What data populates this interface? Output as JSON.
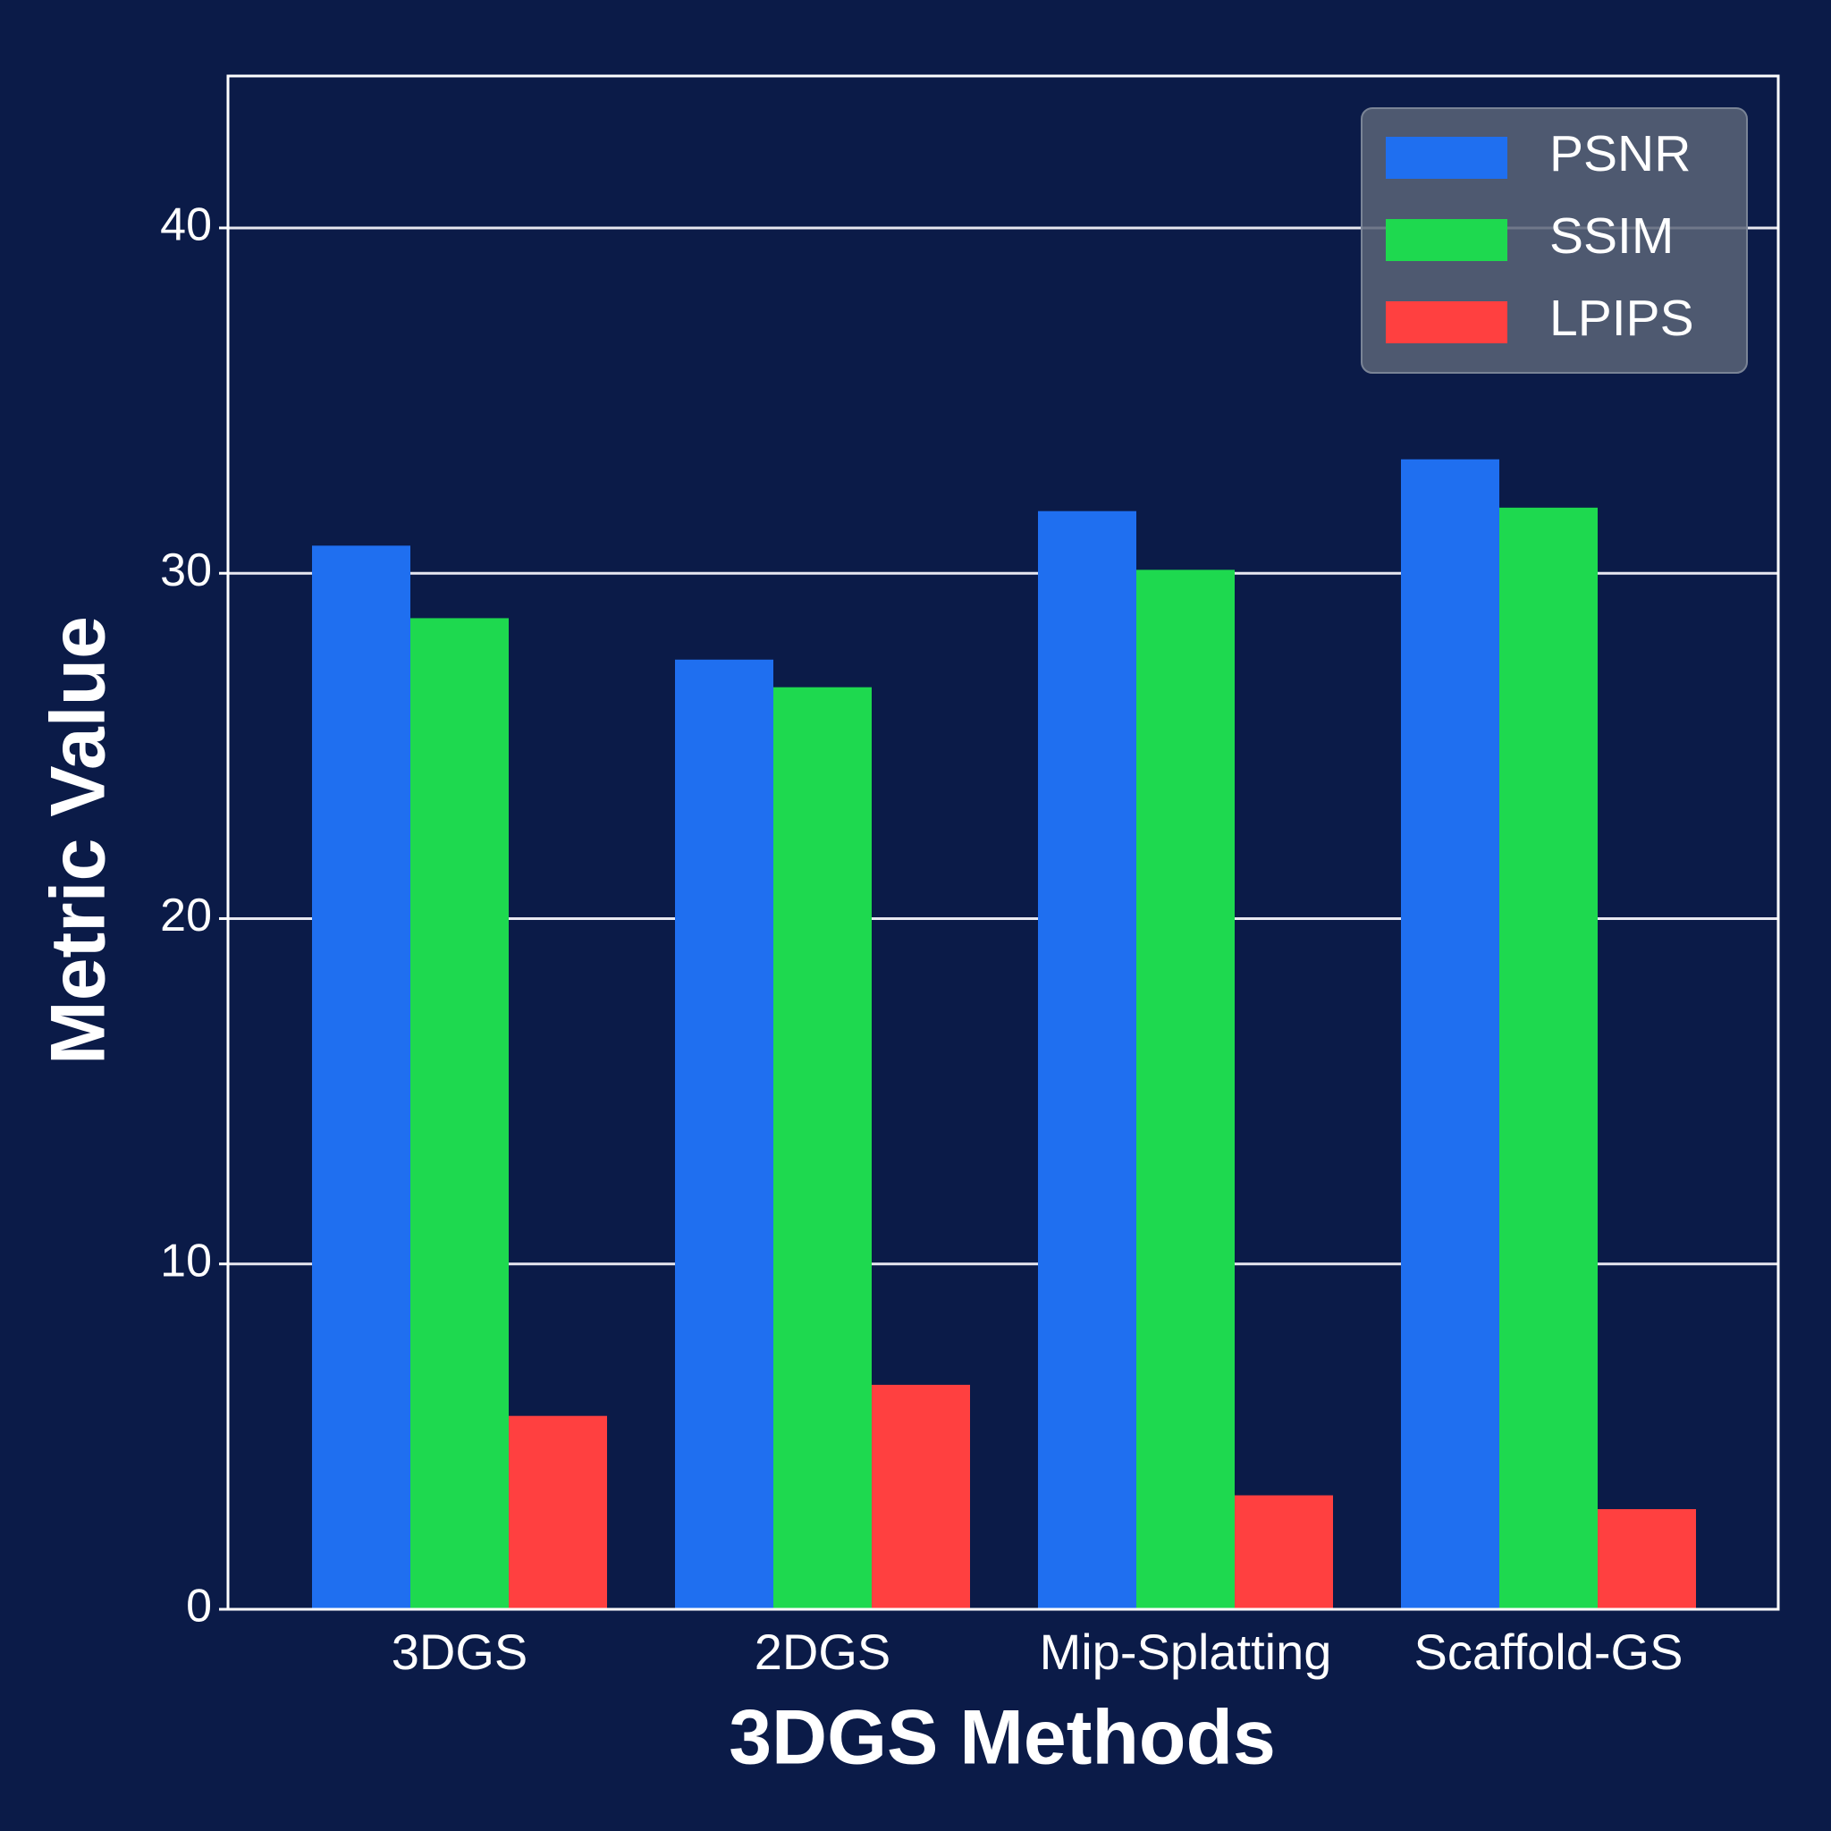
{
  "chart_data": {
    "type": "bar",
    "x_label": "3DGS Methods",
    "y_label": "Metric Value",
    "categories": [
      "3DGS",
      "2DGS",
      "Mip-Splatting",
      "Scaffold-GS"
    ],
    "series": [
      {
        "name": "PSNR",
        "color": "#1f6ff0",
        "values": [
          30.8,
          27.5,
          31.8,
          33.3
        ]
      },
      {
        "name": "SSIM",
        "color": "#1ed94f",
        "values": [
          28.7,
          26.7,
          30.1,
          31.9
        ]
      },
      {
        "name": "LPIPS",
        "color": "#ff4040",
        "values": [
          5.6,
          6.5,
          3.3,
          2.9
        ]
      }
    ],
    "ylim": [
      0,
      44.4
    ],
    "yticks": [
      0,
      10,
      20,
      30,
      40
    ],
    "grid": true,
    "legend": "upper right"
  }
}
